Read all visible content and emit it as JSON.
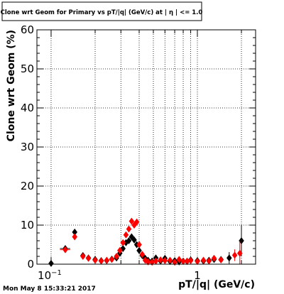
{
  "chart_data": {
    "type": "scatter",
    "title": "Clone wrt Geom for Primary vs pT/|q| (GeV/c) at | η | <= 1.0",
    "xlabel": "pT/|q| (GeV/c)",
    "ylabel": "Clone wrt Geom (%)",
    "xscale": "log",
    "xlim": [
      0.08,
      2.5
    ],
    "ylim": [
      0,
      60
    ],
    "grid": true,
    "y_ticks": [
      0,
      10,
      20,
      30,
      40,
      50,
      60
    ],
    "x_tick_labels": [
      {
        "value": 0.1,
        "base": "10",
        "exp": "−1"
      },
      {
        "value": 1,
        "base": "1",
        "exp": ""
      }
    ],
    "series": [
      {
        "color": "#000000",
        "marker": "diamond",
        "points": [
          {
            "x": 0.1,
            "y": 0.2
          },
          {
            "x": 0.125,
            "y": 4.0,
            "xerr": 0.01
          },
          {
            "x": 0.145,
            "y": 8.2
          },
          {
            "x": 0.165,
            "y": 2.2
          },
          {
            "x": 0.18,
            "y": 1.6
          },
          {
            "x": 0.2,
            "y": 1.2
          },
          {
            "x": 0.22,
            "y": 0.9
          },
          {
            "x": 0.24,
            "y": 0.9
          },
          {
            "x": 0.26,
            "y": 1.3
          },
          {
            "x": 0.28,
            "y": 1.6
          },
          {
            "x": 0.295,
            "y": 2.8
          },
          {
            "x": 0.31,
            "y": 4.0
          },
          {
            "x": 0.325,
            "y": 5.5
          },
          {
            "x": 0.34,
            "y": 6.0
          },
          {
            "x": 0.355,
            "y": 7.0
          },
          {
            "x": 0.37,
            "y": 6.2
          },
          {
            "x": 0.385,
            "y": 5.0
          },
          {
            "x": 0.4,
            "y": 3.5
          },
          {
            "x": 0.42,
            "y": 2.2
          },
          {
            "x": 0.44,
            "y": 1.5
          },
          {
            "x": 0.46,
            "y": 1.0
          },
          {
            "x": 0.49,
            "y": 0.8
          },
          {
            "x": 0.52,
            "y": 1.6
          },
          {
            "x": 0.56,
            "y": 0.8
          },
          {
            "x": 0.6,
            "y": 1.5
          },
          {
            "x": 0.65,
            "y": 0.7
          },
          {
            "x": 0.7,
            "y": 0.9
          },
          {
            "x": 0.75,
            "y": 0.6
          },
          {
            "x": 0.8,
            "y": 0.8
          },
          {
            "x": 0.85,
            "y": 0.7
          },
          {
            "x": 0.9,
            "y": 1.1
          },
          {
            "x": 1.0,
            "y": 0.9
          },
          {
            "x": 1.1,
            "y": 0.8
          },
          {
            "x": 1.2,
            "y": 1.0
          },
          {
            "x": 1.3,
            "y": 1.2
          },
          {
            "x": 1.45,
            "y": 1.2
          },
          {
            "x": 1.65,
            "y": 1.6,
            "yerr": 1.5
          },
          {
            "x": 2.0,
            "y": 6.0,
            "yerr": 4.0
          }
        ]
      },
      {
        "color": "#ff0000",
        "marker": "diamond",
        "points": [
          {
            "x": 0.125,
            "y": 3.7,
            "xerr": 0.01
          },
          {
            "x": 0.145,
            "y": 7.0
          },
          {
            "x": 0.165,
            "y": 2.0
          },
          {
            "x": 0.18,
            "y": 1.5
          },
          {
            "x": 0.2,
            "y": 1.0
          },
          {
            "x": 0.22,
            "y": 0.8
          },
          {
            "x": 0.24,
            "y": 1.0
          },
          {
            "x": 0.26,
            "y": 1.2
          },
          {
            "x": 0.28,
            "y": 2.0
          },
          {
            "x": 0.295,
            "y": 3.5
          },
          {
            "x": 0.31,
            "y": 5.5
          },
          {
            "x": 0.325,
            "y": 7.5
          },
          {
            "x": 0.34,
            "y": 9.0
          },
          {
            "x": 0.355,
            "y": 11.0
          },
          {
            "x": 0.37,
            "y": 10.0
          },
          {
            "x": 0.385,
            "y": 10.8
          },
          {
            "x": 0.4,
            "y": 5.0
          },
          {
            "x": 0.42,
            "y": 2.5
          },
          {
            "x": 0.44,
            "y": 1.0
          },
          {
            "x": 0.46,
            "y": 0.6
          },
          {
            "x": 0.49,
            "y": 0.5
          },
          {
            "x": 0.52,
            "y": 0.8
          },
          {
            "x": 0.56,
            "y": 1.1
          },
          {
            "x": 0.6,
            "y": 0.9
          },
          {
            "x": 0.65,
            "y": 1.0
          },
          {
            "x": 0.7,
            "y": 0.5
          },
          {
            "x": 0.75,
            "y": 1.2
          },
          {
            "x": 0.8,
            "y": 0.7
          },
          {
            "x": 0.85,
            "y": 0.8
          },
          {
            "x": 0.9,
            "y": 0.9
          },
          {
            "x": 1.0,
            "y": 0.7
          },
          {
            "x": 1.1,
            "y": 1.0
          },
          {
            "x": 1.2,
            "y": 0.8
          },
          {
            "x": 1.3,
            "y": 1.5
          },
          {
            "x": 1.45,
            "y": 1.1
          },
          {
            "x": 1.8,
            "y": 2.3,
            "yerr": 1.5
          },
          {
            "x": 1.95,
            "y": 2.8,
            "yerr": 3.0
          }
        ]
      }
    ]
  },
  "footer": {
    "timestamp": "Mon May  8 15:33:21 2017"
  }
}
